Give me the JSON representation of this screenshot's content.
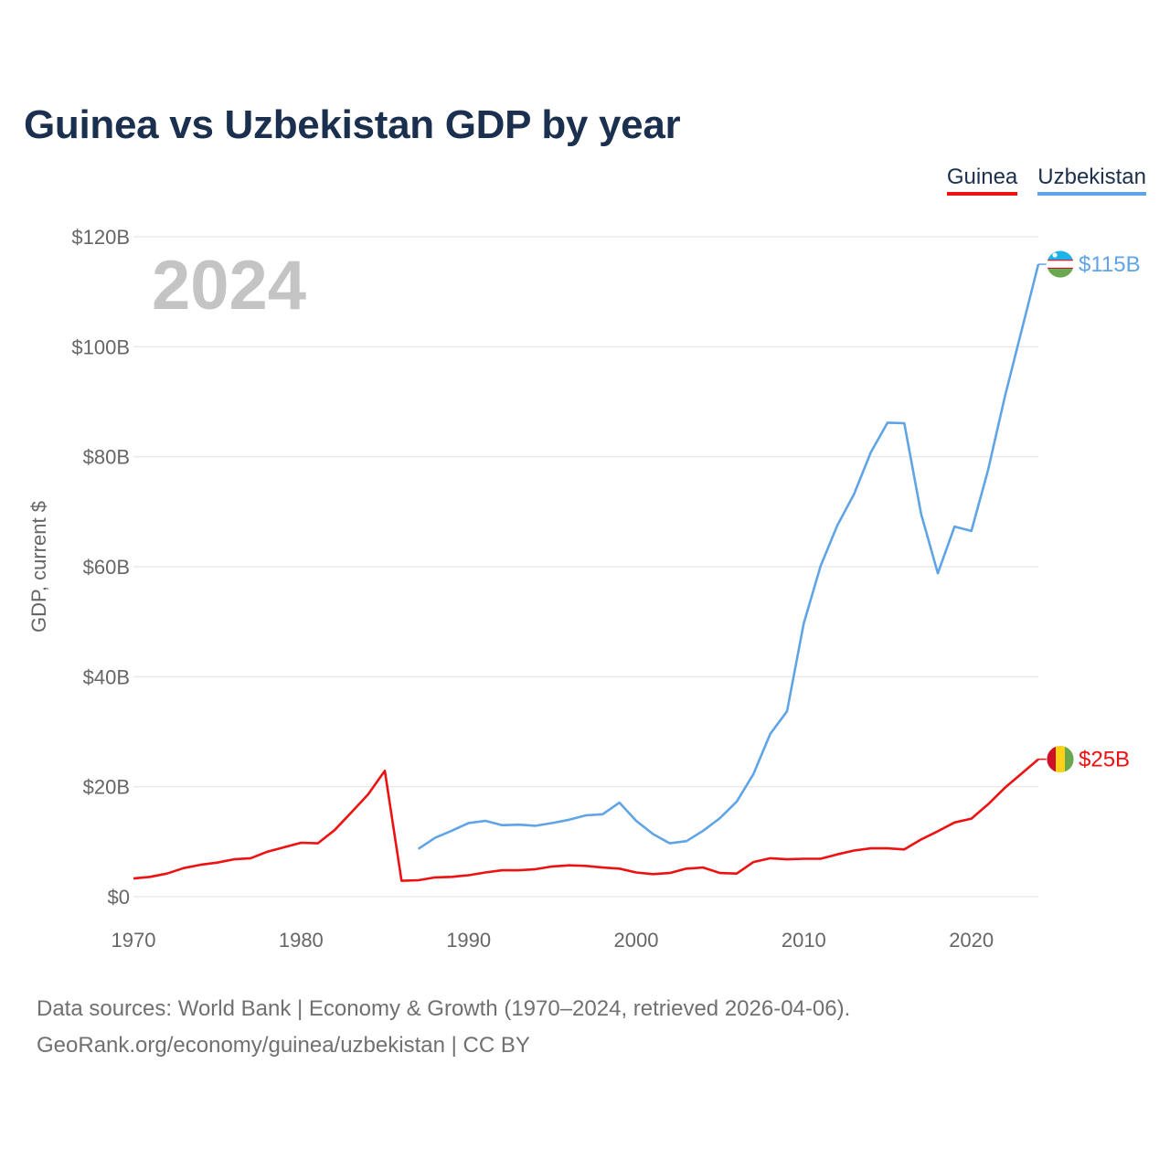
{
  "title": "Guinea vs Uzbekistan GDP by year",
  "legend": {
    "guinea": "Guinea",
    "uzbekistan": "Uzbekistan"
  },
  "footer": {
    "line1": "Data sources: World Bank | Economy & Growth (1970–2024, retrieved 2026-04-06).",
    "line2": "GeoRank.org/economy/guinea/uzbekistan | CC BY"
  },
  "colors": {
    "guinea": "#ee1111",
    "uzbekistan": "#5fa4e6",
    "title": "#1b2f4e",
    "grid": "#e6e6e6"
  },
  "chart_data": {
    "type": "line",
    "title": "Guinea vs Uzbekistan GDP by year",
    "xlabel": "",
    "ylabel": "GDP, current $",
    "year_label": "2024",
    "xlim": [
      1970,
      2024
    ],
    "ylim": [
      0,
      120
    ],
    "x_ticks": [
      1970,
      1980,
      1990,
      2000,
      2010,
      2020
    ],
    "y_ticks": [
      {
        "value": 0,
        "label": "$0"
      },
      {
        "value": 20,
        "label": "$20B"
      },
      {
        "value": 40,
        "label": "$40B"
      },
      {
        "value": 60,
        "label": "$60B"
      },
      {
        "value": 80,
        "label": "$80B"
      },
      {
        "value": 100,
        "label": "$100B"
      },
      {
        "value": 120,
        "label": "$120B"
      }
    ],
    "series": [
      {
        "name": "Guinea",
        "color": "#ee1111",
        "end_label": "$25B",
        "flag": "guinea-flag",
        "points": [
          [
            1970,
            3.3
          ],
          [
            1971,
            3.6
          ],
          [
            1972,
            4.2
          ],
          [
            1973,
            5.2
          ],
          [
            1974,
            5.8
          ],
          [
            1975,
            6.2
          ],
          [
            1976,
            6.8
          ],
          [
            1977,
            7.0
          ],
          [
            1978,
            8.2
          ],
          [
            1979,
            9.0
          ],
          [
            1980,
            9.8
          ],
          [
            1981,
            9.7
          ],
          [
            1982,
            12.1
          ],
          [
            1983,
            15.3
          ],
          [
            1984,
            18.6
          ],
          [
            1985,
            22.9
          ],
          [
            1986,
            2.9
          ],
          [
            1987,
            3.0
          ],
          [
            1988,
            3.5
          ],
          [
            1989,
            3.6
          ],
          [
            1990,
            3.9
          ],
          [
            1991,
            4.4
          ],
          [
            1992,
            4.8
          ],
          [
            1993,
            4.8
          ],
          [
            1994,
            5.0
          ],
          [
            1995,
            5.5
          ],
          [
            1996,
            5.7
          ],
          [
            1997,
            5.6
          ],
          [
            1998,
            5.3
          ],
          [
            1999,
            5.1
          ],
          [
            2000,
            4.4
          ],
          [
            2001,
            4.1
          ],
          [
            2002,
            4.3
          ],
          [
            2003,
            5.1
          ],
          [
            2004,
            5.3
          ],
          [
            2005,
            4.3
          ],
          [
            2006,
            4.2
          ],
          [
            2007,
            6.3
          ],
          [
            2008,
            7.0
          ],
          [
            2009,
            6.8
          ],
          [
            2010,
            6.9
          ],
          [
            2011,
            6.9
          ],
          [
            2012,
            7.7
          ],
          [
            2013,
            8.4
          ],
          [
            2014,
            8.8
          ],
          [
            2015,
            8.8
          ],
          [
            2016,
            8.6
          ],
          [
            2017,
            10.4
          ],
          [
            2018,
            11.9
          ],
          [
            2019,
            13.5
          ],
          [
            2020,
            14.2
          ],
          [
            2021,
            16.8
          ],
          [
            2022,
            19.8
          ],
          [
            2023,
            22.4
          ],
          [
            2024,
            25.0
          ]
        ]
      },
      {
        "name": "Uzbekistan",
        "color": "#5fa4e6",
        "end_label": "$115B",
        "flag": "uzbekistan-flag",
        "points": [
          [
            1987,
            8.7
          ],
          [
            1988,
            10.7
          ],
          [
            1989,
            12.0
          ],
          [
            1990,
            13.4
          ],
          [
            1991,
            13.8
          ],
          [
            1992,
            13.0
          ],
          [
            1993,
            13.1
          ],
          [
            1994,
            12.9
          ],
          [
            1995,
            13.4
          ],
          [
            1996,
            14.0
          ],
          [
            1997,
            14.8
          ],
          [
            1998,
            15.0
          ],
          [
            1999,
            17.1
          ],
          [
            2000,
            13.8
          ],
          [
            2001,
            11.4
          ],
          [
            2002,
            9.7
          ],
          [
            2003,
            10.1
          ],
          [
            2004,
            12.0
          ],
          [
            2005,
            14.3
          ],
          [
            2006,
            17.3
          ],
          [
            2007,
            22.3
          ],
          [
            2008,
            29.6
          ],
          [
            2009,
            33.7
          ],
          [
            2010,
            49.7
          ],
          [
            2011,
            60.1
          ],
          [
            2012,
            67.5
          ],
          [
            2013,
            73.2
          ],
          [
            2014,
            80.8
          ],
          [
            2015,
            86.2
          ],
          [
            2016,
            86.1
          ],
          [
            2017,
            69.6
          ],
          [
            2018,
            58.8
          ],
          [
            2019,
            67.3
          ],
          [
            2020,
            66.5
          ],
          [
            2021,
            77.6
          ],
          [
            2022,
            90.9
          ],
          [
            2023,
            103.0
          ],
          [
            2024,
            115.0
          ]
        ]
      }
    ]
  }
}
